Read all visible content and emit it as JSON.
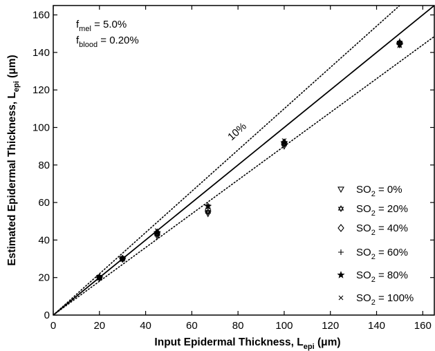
{
  "chart_data": {
    "type": "scatter",
    "xlabel": {
      "main": "Input Epidermal Thickness, L",
      "sub": "epi",
      "unit": " (μm)"
    },
    "ylabel": {
      "main": "Estimated Epidermal Thickness, L",
      "sub": "epi",
      "unit": " (μm)"
    },
    "xlim": [
      0,
      165
    ],
    "ylim": [
      0,
      165
    ],
    "xticks": [
      0,
      20,
      40,
      60,
      80,
      100,
      120,
      140,
      160
    ],
    "yticks": [
      0,
      20,
      40,
      60,
      80,
      100,
      120,
      140,
      160
    ],
    "grid": false,
    "annotations": {
      "fmel": {
        "f": "f",
        "sub": "mel",
        "rest": " = 5.0%"
      },
      "fblood": {
        "f": "f",
        "sub": "blood",
        "rest": " = 0.20%"
      },
      "band_label": "10%"
    },
    "reference_lines": [
      {
        "kind": "identity",
        "slope": 1.0,
        "style": "solid"
      },
      {
        "kind": "plus_10_percent",
        "slope": 1.1,
        "style": "dotted"
      },
      {
        "kind": "minus_10_percent",
        "slope": 0.9,
        "style": "dotted"
      }
    ],
    "legend_position": "bottom-right",
    "series": [
      {
        "label": {
          "pre": "SO",
          "sub": "2",
          "post": " = 0%"
        },
        "marker": "triangle-down",
        "x": [
          20,
          30,
          45,
          67,
          100,
          150
        ],
        "y": [
          20,
          30,
          42,
          54,
          90,
          144
        ]
      },
      {
        "label": {
          "pre": "SO",
          "sub": "2",
          "post": " = 20%"
        },
        "marker": "hexagram",
        "x": [
          20,
          30,
          45,
          67,
          100,
          150
        ],
        "y": [
          20,
          30,
          43,
          55,
          91,
          145
        ]
      },
      {
        "label": {
          "pre": "SO",
          "sub": "2",
          "post": " = 40%"
        },
        "marker": "diamond",
        "x": [
          20,
          30,
          45,
          67,
          100,
          150
        ],
        "y": [
          20,
          30,
          44,
          56,
          92,
          145
        ]
      },
      {
        "label": {
          "pre": "SO",
          "sub": "2",
          "post": " = 60%"
        },
        "marker": "plus",
        "x": [
          20,
          30,
          45,
          67,
          100,
          150
        ],
        "y": [
          20,
          30,
          44,
          57,
          92,
          146
        ]
      },
      {
        "label": {
          "pre": "SO",
          "sub": "2",
          "post": " = 80%"
        },
        "marker": "star",
        "x": [
          20,
          30,
          45,
          67,
          100,
          150
        ],
        "y": [
          20,
          30,
          44,
          58,
          92,
          144
        ]
      },
      {
        "label": {
          "pre": "SO",
          "sub": "2",
          "post": " = 100%"
        },
        "marker": "x",
        "x": [
          20,
          30,
          45,
          67,
          100,
          150
        ],
        "y": [
          20,
          30,
          45,
          58,
          93,
          145
        ]
      }
    ]
  }
}
